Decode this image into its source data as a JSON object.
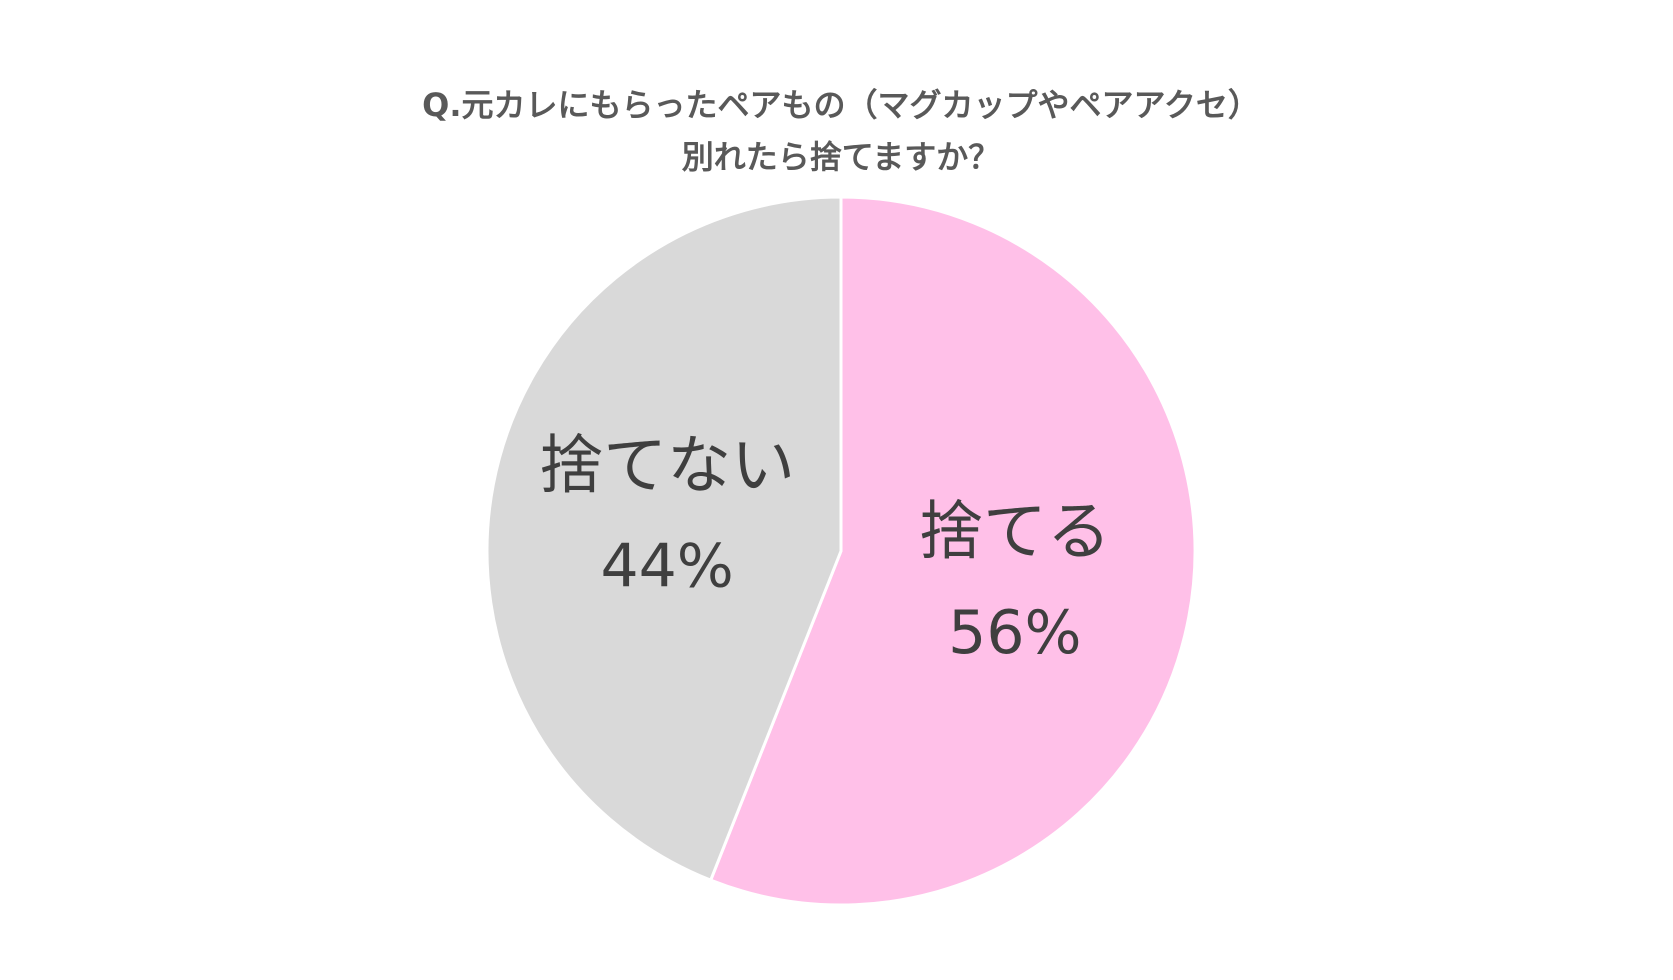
{
  "chart_data": {
    "type": "pie",
    "title": [
      "Q.元カレにもらったペアもの（マグカップやペアアクセ）",
      "別れたら捨てますか？"
    ],
    "categories": [
      "捨てる",
      "捨てない"
    ],
    "values": [
      56,
      44
    ],
    "value_labels": [
      "56%",
      "44%"
    ],
    "colors": [
      "#ffc0e8",
      "#d9d9d9"
    ]
  }
}
